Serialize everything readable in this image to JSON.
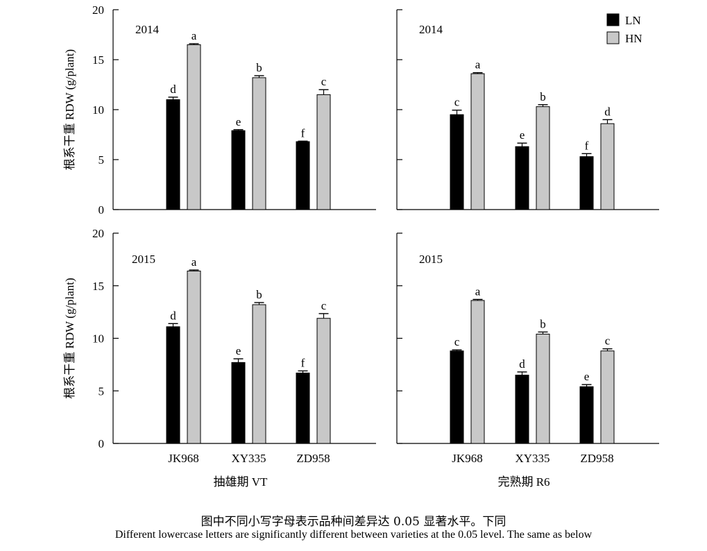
{
  "chart_data": {
    "type": "bar",
    "ylabel": "根系干重 RDW (g/plant)",
    "ylim": [
      0,
      20
    ],
    "yticks": [
      "0",
      "5",
      "10",
      "15",
      "20"
    ],
    "categories": [
      "JK968",
      "XY335",
      "ZD958"
    ],
    "stage_labels": [
      "抽雄期 VT",
      "完熟期 R6"
    ],
    "legend": {
      "position": "top-right",
      "entries": [
        {
          "name": "LN",
          "color": "#000000"
        },
        {
          "name": "HN",
          "color": "#c8c8c8"
        }
      ]
    },
    "panels": [
      {
        "year": "2014",
        "stage": "抽雄期 VT",
        "series": [
          {
            "name": "LN",
            "values": [
              11.0,
              7.9,
              6.8
            ],
            "errors": [
              0.25,
              0.1,
              0.05
            ],
            "letters": [
              "d",
              "e",
              "f"
            ]
          },
          {
            "name": "HN",
            "values": [
              16.5,
              13.2,
              11.5
            ],
            "errors": [
              0.1,
              0.2,
              0.5
            ],
            "letters": [
              "a",
              "b",
              "c"
            ]
          }
        ]
      },
      {
        "year": "2014",
        "stage": "完熟期 R6",
        "series": [
          {
            "name": "LN",
            "values": [
              9.5,
              6.3,
              5.3
            ],
            "errors": [
              0.45,
              0.35,
              0.3
            ],
            "letters": [
              "c",
              "e",
              "f"
            ]
          },
          {
            "name": "HN",
            "values": [
              13.6,
              10.3,
              8.6
            ],
            "errors": [
              0.1,
              0.2,
              0.4
            ],
            "letters": [
              "a",
              "b",
              "d"
            ]
          }
        ]
      },
      {
        "year": "2015",
        "stage": "抽雄期 VT",
        "series": [
          {
            "name": "LN",
            "values": [
              11.1,
              7.7,
              6.7
            ],
            "errors": [
              0.3,
              0.35,
              0.2
            ],
            "letters": [
              "d",
              "e",
              "f"
            ]
          },
          {
            "name": "HN",
            "values": [
              16.4,
              13.2,
              11.9
            ],
            "errors": [
              0.1,
              0.2,
              0.45
            ],
            "letters": [
              "a",
              "b",
              "c"
            ]
          }
        ]
      },
      {
        "year": "2015",
        "stage": "完熟期 R6",
        "series": [
          {
            "name": "LN",
            "values": [
              8.8,
              6.5,
              5.4
            ],
            "errors": [
              0.1,
              0.3,
              0.2
            ],
            "letters": [
              "c",
              "d",
              "e"
            ]
          },
          {
            "name": "HN",
            "values": [
              13.6,
              10.4,
              8.8
            ],
            "errors": [
              0.1,
              0.2,
              0.2
            ],
            "letters": [
              "a",
              "b",
              "c"
            ]
          }
        ]
      }
    ]
  },
  "caption": {
    "zh": "图中不同小写字母表示品种间差异达 0.05  显著水平。下同",
    "en": "Different lowercase letters are significantly different between varieties at the 0.05 level. The same as below"
  }
}
